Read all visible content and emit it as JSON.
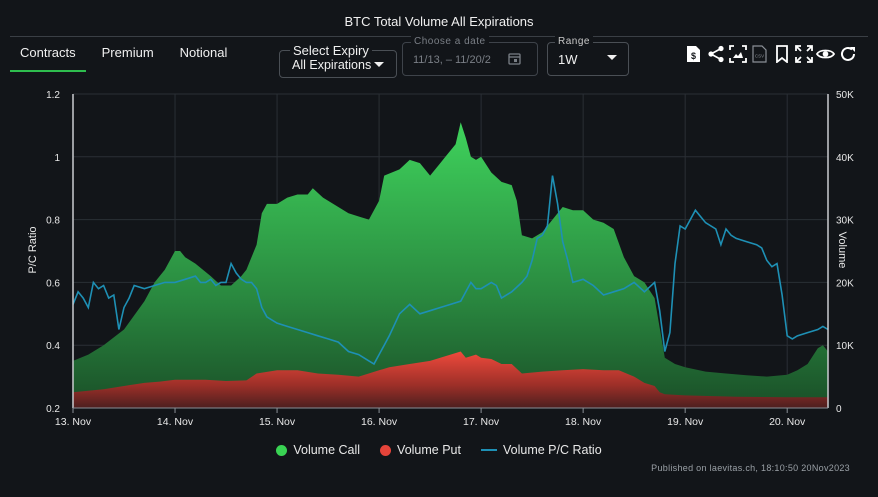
{
  "title": "BTC Total Volume All Expirations",
  "tabs": [
    {
      "label": "Contracts",
      "active": true
    },
    {
      "label": "Premium",
      "active": false
    },
    {
      "label": "Notional",
      "active": false
    }
  ],
  "expiry": {
    "label": "Select Expiry",
    "value": "All Expirations"
  },
  "date": {
    "label": "Choose a date",
    "value": "11/13, – 11/20/2"
  },
  "range": {
    "label": "Range",
    "value": "1W"
  },
  "toolbar_icons": [
    "pdf-icon",
    "share-icon",
    "screenshot-icon",
    "csv-icon",
    "bookmark-icon",
    "fullscreen-icon",
    "eye-icon",
    "refresh-icon"
  ],
  "colors": {
    "call": "#39d353",
    "put": "#e5443a",
    "ratio": "#1e90b5",
    "background": "#121519"
  },
  "credit": "Published on laevitas.ch, 18:10:50 20Nov2023",
  "chart_data": {
    "type": "area",
    "x_ticks": [
      "13. Nov",
      "14. Nov",
      "15. Nov",
      "16. Nov",
      "17. Nov",
      "18. Nov",
      "19. Nov",
      "20. Nov"
    ],
    "x_range": [
      0,
      7.4
    ],
    "y_left": {
      "label": "P/C Ratio",
      "ticks": [
        "0.2",
        "0.4",
        "0.6",
        "0.8",
        "1",
        "1.2"
      ],
      "min": 0.2,
      "max": 1.2
    },
    "y_right": {
      "label": "Volume",
      "ticks": [
        "0",
        "10K",
        "20K",
        "30K",
        "40K",
        "50K"
      ],
      "min": 0,
      "max": 50000
    },
    "series": [
      {
        "name": "Volume Call",
        "axis": "right",
        "type": "area",
        "points": [
          [
            0,
            7500
          ],
          [
            0.15,
            8500
          ],
          [
            0.3,
            10000
          ],
          [
            0.5,
            12500
          ],
          [
            0.7,
            17000
          ],
          [
            0.8,
            20000
          ],
          [
            0.9,
            22000
          ],
          [
            1.0,
            25000
          ],
          [
            1.05,
            25000
          ],
          [
            1.1,
            24000
          ],
          [
            1.2,
            23000
          ],
          [
            1.35,
            21000
          ],
          [
            1.45,
            19500
          ],
          [
            1.55,
            19500
          ],
          [
            1.65,
            21000
          ],
          [
            1.7,
            22000
          ],
          [
            1.8,
            26000
          ],
          [
            1.85,
            31000
          ],
          [
            1.9,
            32500
          ],
          [
            2.0,
            32500
          ],
          [
            2.1,
            33500
          ],
          [
            2.2,
            34000
          ],
          [
            2.3,
            34000
          ],
          [
            2.35,
            35000
          ],
          [
            2.45,
            33500
          ],
          [
            2.6,
            32000
          ],
          [
            2.7,
            31000
          ],
          [
            2.8,
            30500
          ],
          [
            2.9,
            30000
          ],
          [
            3.0,
            33000
          ],
          [
            3.05,
            37000
          ],
          [
            3.2,
            38000
          ],
          [
            3.3,
            39500
          ],
          [
            3.4,
            39000
          ],
          [
            3.5,
            37000
          ],
          [
            3.6,
            39000
          ],
          [
            3.65,
            40000
          ],
          [
            3.7,
            41000
          ],
          [
            3.75,
            42000
          ],
          [
            3.8,
            45500
          ],
          [
            3.85,
            43000
          ],
          [
            3.9,
            40000
          ],
          [
            3.95,
            39500
          ],
          [
            4.0,
            40000
          ],
          [
            4.1,
            37500
          ],
          [
            4.2,
            36000
          ],
          [
            4.3,
            35500
          ],
          [
            4.35,
            33000
          ],
          [
            4.4,
            27500
          ],
          [
            4.5,
            27000
          ],
          [
            4.6,
            28000
          ],
          [
            4.7,
            30000
          ],
          [
            4.75,
            31000
          ],
          [
            4.8,
            32000
          ],
          [
            4.9,
            31500
          ],
          [
            5.0,
            31500
          ],
          [
            5.1,
            30000
          ],
          [
            5.2,
            29500
          ],
          [
            5.3,
            28500
          ],
          [
            5.4,
            24000
          ],
          [
            5.5,
            21000
          ],
          [
            5.6,
            20000
          ],
          [
            5.7,
            17500
          ],
          [
            5.8,
            8000
          ],
          [
            5.9,
            7000
          ],
          [
            6.0,
            6500
          ],
          [
            6.2,
            5800
          ],
          [
            6.4,
            5500
          ],
          [
            6.6,
            5200
          ],
          [
            6.8,
            5000
          ],
          [
            7.0,
            5300
          ],
          [
            7.1,
            6000
          ],
          [
            7.2,
            7000
          ],
          [
            7.3,
            9500
          ],
          [
            7.35,
            10000
          ],
          [
            7.4,
            9000
          ]
        ]
      },
      {
        "name": "Volume Put",
        "axis": "right",
        "type": "area",
        "points": [
          [
            0,
            2500
          ],
          [
            0.3,
            3000
          ],
          [
            0.5,
            3500
          ],
          [
            0.7,
            4000
          ],
          [
            0.85,
            4200
          ],
          [
            1.0,
            4500
          ],
          [
            1.3,
            4500
          ],
          [
            1.5,
            4300
          ],
          [
            1.7,
            4400
          ],
          [
            1.8,
            5500
          ],
          [
            2.0,
            6000
          ],
          [
            2.2,
            6000
          ],
          [
            2.4,
            5500
          ],
          [
            2.6,
            5300
          ],
          [
            2.8,
            5000
          ],
          [
            3.0,
            6000
          ],
          [
            3.1,
            6500
          ],
          [
            3.3,
            7000
          ],
          [
            3.5,
            7500
          ],
          [
            3.6,
            8000
          ],
          [
            3.7,
            8500
          ],
          [
            3.8,
            9000
          ],
          [
            3.85,
            8000
          ],
          [
            3.95,
            8500
          ],
          [
            4.0,
            8000
          ],
          [
            4.1,
            7800
          ],
          [
            4.2,
            7000
          ],
          [
            4.3,
            7000
          ],
          [
            4.4,
            5500
          ],
          [
            4.6,
            5800
          ],
          [
            4.8,
            6000
          ],
          [
            5.0,
            6200
          ],
          [
            5.2,
            6000
          ],
          [
            5.35,
            6000
          ],
          [
            5.5,
            5000
          ],
          [
            5.6,
            4000
          ],
          [
            5.7,
            3500
          ],
          [
            5.75,
            2500
          ],
          [
            5.8,
            2200
          ],
          [
            6.0,
            2000
          ],
          [
            6.5,
            1800
          ],
          [
            7.0,
            1700
          ],
          [
            7.3,
            1700
          ],
          [
            7.4,
            1700
          ]
        ]
      },
      {
        "name": "Volume P/C Ratio",
        "axis": "left",
        "type": "line",
        "points": [
          [
            0,
            0.53
          ],
          [
            0.05,
            0.57
          ],
          [
            0.1,
            0.55
          ],
          [
            0.15,
            0.52
          ],
          [
            0.2,
            0.6
          ],
          [
            0.25,
            0.58
          ],
          [
            0.3,
            0.59
          ],
          [
            0.35,
            0.55
          ],
          [
            0.4,
            0.56
          ],
          [
            0.45,
            0.45
          ],
          [
            0.5,
            0.52
          ],
          [
            0.55,
            0.55
          ],
          [
            0.6,
            0.59
          ],
          [
            0.7,
            0.58
          ],
          [
            0.8,
            0.59
          ],
          [
            0.9,
            0.6
          ],
          [
            1.0,
            0.6
          ],
          [
            1.1,
            0.61
          ],
          [
            1.2,
            0.62
          ],
          [
            1.25,
            0.6
          ],
          [
            1.3,
            0.6
          ],
          [
            1.35,
            0.61
          ],
          [
            1.4,
            0.59
          ],
          [
            1.45,
            0.6
          ],
          [
            1.5,
            0.6
          ],
          [
            1.55,
            0.66
          ],
          [
            1.6,
            0.63
          ],
          [
            1.65,
            0.61
          ],
          [
            1.7,
            0.6
          ],
          [
            1.75,
            0.6
          ],
          [
            1.8,
            0.58
          ],
          [
            1.85,
            0.52
          ],
          [
            1.9,
            0.49
          ],
          [
            2.0,
            0.47
          ],
          [
            2.1,
            0.46
          ],
          [
            2.2,
            0.45
          ],
          [
            2.3,
            0.44
          ],
          [
            2.4,
            0.43
          ],
          [
            2.5,
            0.42
          ],
          [
            2.6,
            0.41
          ],
          [
            2.7,
            0.38
          ],
          [
            2.8,
            0.37
          ],
          [
            2.9,
            0.35
          ],
          [
            2.95,
            0.34
          ],
          [
            3.05,
            0.4
          ],
          [
            3.1,
            0.43
          ],
          [
            3.2,
            0.5
          ],
          [
            3.3,
            0.53
          ],
          [
            3.4,
            0.5
          ],
          [
            3.5,
            0.51
          ],
          [
            3.6,
            0.52
          ],
          [
            3.7,
            0.53
          ],
          [
            3.8,
            0.54
          ],
          [
            3.9,
            0.6
          ],
          [
            3.95,
            0.58
          ],
          [
            4.0,
            0.58
          ],
          [
            4.1,
            0.6
          ],
          [
            4.15,
            0.59
          ],
          [
            4.2,
            0.55
          ],
          [
            4.3,
            0.57
          ],
          [
            4.4,
            0.6
          ],
          [
            4.45,
            0.62
          ],
          [
            4.5,
            0.67
          ],
          [
            4.55,
            0.74
          ],
          [
            4.6,
            0.75
          ],
          [
            4.65,
            0.78
          ],
          [
            4.7,
            0.94
          ],
          [
            4.75,
            0.85
          ],
          [
            4.8,
            0.73
          ],
          [
            4.85,
            0.67
          ],
          [
            4.9,
            0.6
          ],
          [
            5.0,
            0.61
          ],
          [
            5.1,
            0.59
          ],
          [
            5.2,
            0.56
          ],
          [
            5.3,
            0.57
          ],
          [
            5.4,
            0.58
          ],
          [
            5.5,
            0.6
          ],
          [
            5.6,
            0.57
          ],
          [
            5.7,
            0.6
          ],
          [
            5.75,
            0.51
          ],
          [
            5.8,
            0.38
          ],
          [
            5.85,
            0.44
          ],
          [
            5.9,
            0.66
          ],
          [
            5.95,
            0.78
          ],
          [
            6.0,
            0.77
          ],
          [
            6.05,
            0.8
          ],
          [
            6.1,
            0.83
          ],
          [
            6.15,
            0.81
          ],
          [
            6.2,
            0.79
          ],
          [
            6.3,
            0.77
          ],
          [
            6.35,
            0.72
          ],
          [
            6.4,
            0.77
          ],
          [
            6.45,
            0.75
          ],
          [
            6.5,
            0.74
          ],
          [
            6.6,
            0.73
          ],
          [
            6.7,
            0.72
          ],
          [
            6.75,
            0.71
          ],
          [
            6.8,
            0.67
          ],
          [
            6.85,
            0.65
          ],
          [
            6.9,
            0.66
          ],
          [
            6.95,
            0.56
          ],
          [
            7.0,
            0.43
          ],
          [
            7.05,
            0.42
          ],
          [
            7.1,
            0.43
          ],
          [
            7.2,
            0.44
          ],
          [
            7.3,
            0.45
          ],
          [
            7.35,
            0.46
          ],
          [
            7.4,
            0.45
          ]
        ]
      }
    ],
    "legend": [
      "Volume Call",
      "Volume Put",
      "Volume P/C Ratio"
    ],
    "legend_position": "bottom",
    "grid": true
  }
}
